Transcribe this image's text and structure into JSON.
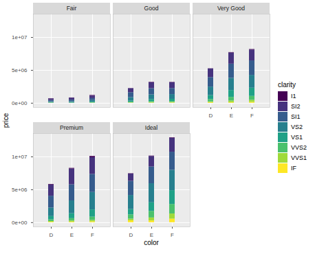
{
  "chart_data": {
    "type": "bar",
    "stacked": true,
    "grid": true,
    "legend": "right",
    "legend_title": "clarity",
    "x_label": "color",
    "y_label": "price",
    "facets": [
      "Fair",
      "Good",
      "Very Good",
      "Premium",
      "Ideal"
    ],
    "categories": [
      "D",
      "E",
      "F"
    ],
    "ylim": [
      -645500,
      13555500
    ],
    "yticks": [
      {
        "value": 0,
        "label": "0e+00"
      },
      {
        "value": 5000000,
        "label": "5e+06"
      },
      {
        "value": 10000000,
        "label": "1e+07"
      }
    ],
    "series": [
      {
        "name": "I1",
        "color": "#440154",
        "values": [
          [
            40000,
            30000,
            90000
          ],
          [
            30000,
            60000,
            50000
          ],
          [
            30000,
            70000,
            80000
          ],
          [
            80000,
            100000,
            180000
          ],
          [
            50000,
            60000,
            80000
          ]
        ]
      },
      {
        "name": "SI2",
        "color": "#46337E",
        "values": [
          [
            230000,
            300000,
            380000
          ],
          [
            600000,
            900000,
            880000
          ],
          [
            1300000,
            1700000,
            1650000
          ],
          [
            1700000,
            2400000,
            2550000
          ],
          [
            1100000,
            1600000,
            2100000
          ]
        ]
      },
      {
        "name": "SI1",
        "color": "#365C8D",
        "values": [
          [
            190000,
            230000,
            300000
          ],
          [
            750000,
            950000,
            920000
          ],
          [
            1450000,
            2150000,
            2200000
          ],
          [
            1800000,
            2450000,
            2750000
          ],
          [
            2150000,
            2550000,
            2750000
          ]
        ]
      },
      {
        "name": "VS2",
        "color": "#277F8E",
        "values": [
          [
            120000,
            140000,
            220000
          ],
          [
            520000,
            700000,
            720000
          ],
          [
            1300000,
            1850000,
            1950000
          ],
          [
            1300000,
            1950000,
            2650000
          ],
          [
            2150000,
            2900000,
            3100000
          ]
        ]
      },
      {
        "name": "VS1",
        "color": "#1FA187",
        "values": [
          [
            50000,
            70000,
            100000
          ],
          [
            180000,
            300000,
            320000
          ],
          [
            600000,
            1050000,
            1250000
          ],
          [
            500000,
            750000,
            1100000
          ],
          [
            800000,
            1300000,
            2100000
          ]
        ]
      },
      {
        "name": "VVS2",
        "color": "#4AC16D",
        "values": [
          [
            50000,
            40000,
            60000
          ],
          [
            100000,
            160000,
            150000
          ],
          [
            350000,
            550000,
            600000
          ],
          [
            250000,
            350000,
            500000
          ],
          [
            650000,
            1000000,
            1450000
          ]
        ]
      },
      {
        "name": "VVS1",
        "color": "#9FDA3A",
        "values": [
          [
            10000,
            5000,
            20000
          ],
          [
            40000,
            70000,
            80000
          ],
          [
            120000,
            250000,
            300000
          ],
          [
            110000,
            170000,
            200000
          ],
          [
            250000,
            450000,
            780000
          ]
        ]
      },
      {
        "name": "IF",
        "color": "#FDE725",
        "values": [
          [
            10000,
            5000,
            20000
          ],
          [
            30000,
            50000,
            60000
          ],
          [
            100000,
            100000,
            150000
          ],
          [
            80000,
            100000,
            150000
          ],
          [
            300000,
            280000,
            550000
          ]
        ]
      }
    ]
  }
}
